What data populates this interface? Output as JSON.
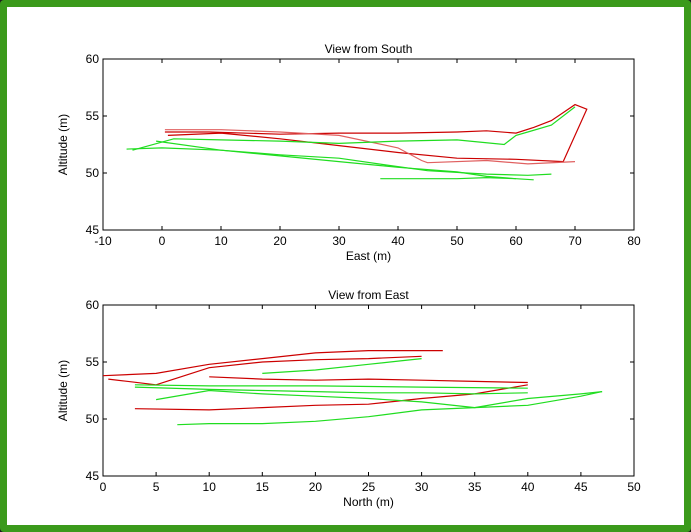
{
  "chart_data": [
    {
      "type": "line",
      "title": "View from South",
      "xlabel": "East (m)",
      "ylabel": "Altitude (m)",
      "xlim": [
        -10,
        80
      ],
      "ylim": [
        45,
        60
      ],
      "xticks": [
        -10,
        0,
        10,
        20,
        30,
        40,
        50,
        60,
        70,
        80
      ],
      "yticks": [
        45,
        50,
        55,
        60
      ],
      "grid": false,
      "series": [
        {
          "color": "#cc0000",
          "x": [
            0.5,
            8,
            20,
            30,
            40,
            50,
            55,
            60,
            63,
            66,
            68,
            70,
            72,
            68,
            60,
            50,
            40,
            30,
            20,
            10,
            1
          ],
          "y": [
            53.6,
            53.6,
            53.4,
            53.5,
            53.5,
            53.6,
            53.7,
            53.5,
            54.0,
            54.6,
            55.3,
            56.0,
            55.6,
            51.0,
            51.2,
            51.3,
            51.8,
            52.4,
            53.0,
            53.5,
            53.3
          ]
        },
        {
          "color": "#e06060",
          "x": [
            0.5,
            10,
            20,
            30,
            40,
            44,
            45,
            55,
            62,
            70
          ],
          "y": [
            53.8,
            53.8,
            53.6,
            53.3,
            52.2,
            51.1,
            50.9,
            51.1,
            50.8,
            51.0
          ]
        },
        {
          "color": "#20dd20",
          "x": [
            -5,
            2,
            10,
            20,
            30,
            40,
            50,
            58,
            60,
            62,
            66,
            70
          ],
          "y": [
            52.0,
            53.0,
            52.9,
            52.8,
            52.6,
            52.8,
            52.9,
            52.5,
            53.3,
            53.6,
            54.2,
            55.8
          ]
        },
        {
          "color": "#20dd20",
          "x": [
            -6,
            0,
            10,
            20,
            30,
            38,
            45,
            55,
            62,
            66
          ],
          "y": [
            52.1,
            52.2,
            52.0,
            51.6,
            51.3,
            50.7,
            50.2,
            49.9,
            49.8,
            49.9
          ]
        },
        {
          "color": "#20dd20",
          "x": [
            -1,
            10,
            20,
            30,
            40,
            50,
            55,
            60
          ],
          "y": [
            52.8,
            52.0,
            51.5,
            51.0,
            50.5,
            50.1,
            49.7,
            49.5
          ]
        },
        {
          "color": "#20dd20",
          "x": [
            37,
            45,
            50,
            55,
            60,
            63
          ],
          "y": [
            49.5,
            49.5,
            49.5,
            49.6,
            49.5,
            49.4
          ]
        }
      ]
    },
    {
      "type": "line",
      "title": "View from East",
      "xlabel": "North (m)",
      "ylabel": "Altitude (m)",
      "xlim": [
        0,
        50
      ],
      "ylim": [
        45,
        60
      ],
      "xticks": [
        0,
        5,
        10,
        15,
        20,
        25,
        30,
        35,
        40,
        45,
        50
      ],
      "yticks": [
        45,
        50,
        55,
        60
      ],
      "grid": false,
      "series": [
        {
          "color": "#cc0000",
          "x": [
            0,
            5,
            10,
            15,
            20,
            25,
            30,
            32
          ],
          "y": [
            53.8,
            54.0,
            54.8,
            55.3,
            55.8,
            56.0,
            56.0,
            56.0
          ]
        },
        {
          "color": "#cc0000",
          "x": [
            0.5,
            5,
            10,
            15,
            20,
            25,
            30
          ],
          "y": [
            53.5,
            53.0,
            54.5,
            55.0,
            55.2,
            55.3,
            55.5
          ]
        },
        {
          "color": "#cc0000",
          "x": [
            3,
            10,
            15,
            20,
            25,
            30,
            35,
            40
          ],
          "y": [
            50.9,
            50.8,
            51.0,
            51.2,
            51.3,
            51.8,
            52.2,
            53.0
          ]
        },
        {
          "color": "#cc0000",
          "x": [
            10,
            15,
            20,
            25,
            30,
            35,
            40
          ],
          "y": [
            53.7,
            53.5,
            53.4,
            53.5,
            53.4,
            53.3,
            53.2
          ]
        },
        {
          "color": "#20dd20",
          "x": [
            3,
            10,
            15,
            20,
            25,
            30,
            35,
            40
          ],
          "y": [
            52.8,
            52.6,
            52.5,
            52.4,
            52.3,
            52.3,
            52.2,
            52.3
          ]
        },
        {
          "color": "#20dd20",
          "x": [
            7,
            10,
            15,
            20,
            25,
            30,
            35,
            40,
            45,
            47
          ],
          "y": [
            49.5,
            49.6,
            49.6,
            49.8,
            50.2,
            50.8,
            51.0,
            51.8,
            52.2,
            52.4
          ]
        },
        {
          "color": "#20dd20",
          "x": [
            5,
            10,
            15,
            20,
            25,
            30,
            35,
            40,
            45,
            47
          ],
          "y": [
            51.7,
            52.5,
            52.2,
            52.0,
            51.8,
            51.5,
            51.0,
            51.2,
            52.0,
            52.4
          ]
        },
        {
          "color": "#20dd20",
          "x": [
            15,
            20,
            25,
            28,
            30
          ],
          "y": [
            54.0,
            54.3,
            54.8,
            55.1,
            55.3
          ]
        },
        {
          "color": "#20dd20",
          "x": [
            3,
            10,
            20,
            30,
            40
          ],
          "y": [
            53.0,
            52.9,
            52.9,
            52.8,
            52.7
          ]
        }
      ]
    }
  ]
}
